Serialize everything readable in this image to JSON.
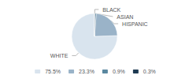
{
  "chart_data": {
    "type": "pie",
    "categories": [
      "WHITE",
      "HISPANIC",
      "ASIAN",
      "BLACK"
    ],
    "values": [
      75.5,
      23.3,
      0.9,
      0.3
    ],
    "value_labels": [
      "75.5%",
      "23.3%",
      "0.9%",
      "0.3%"
    ],
    "colors": [
      "#d9e4ee",
      "#9ab3c8",
      "#5b88a0",
      "#1e3a52"
    ],
    "legend": "bottom"
  }
}
